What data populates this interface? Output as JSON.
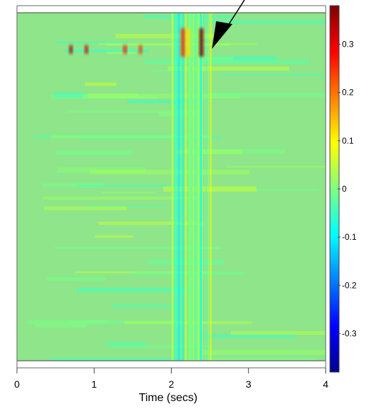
{
  "chart_data": {
    "type": "heatmap",
    "title": "",
    "xlabel": "Time (secs)",
    "ylabel": "",
    "xlim": [
      0,
      4
    ],
    "x_ticks": [
      "0",
      "1",
      "2",
      "3",
      "4"
    ],
    "colorbar": {
      "range": [
        -0.38,
        0.38
      ],
      "ticks": [
        "0.3",
        "0.2",
        "0.1",
        "0",
        "-0.1",
        "-0.2",
        "-0.3"
      ],
      "colormap": "jet"
    },
    "background_value": 0.0,
    "features": [
      {
        "t": 2.15,
        "value": 0.25,
        "note": "strong activity band"
      },
      {
        "t": 2.22,
        "value": 0.12
      },
      {
        "t": 2.39,
        "value": 0.38
      },
      {
        "t": 0.7,
        "value": 0.35
      },
      {
        "t": 0.9,
        "value": 0.32
      },
      {
        "t": 1.4,
        "value": 0.28
      },
      {
        "t": 1.6,
        "value": 0.25
      }
    ],
    "annotation": "arrow pointing to peak near t = 2.4 s",
    "colors": {
      "background": "#8ee58a",
      "peak": "#7a1530",
      "arrow": "#000000"
    }
  }
}
